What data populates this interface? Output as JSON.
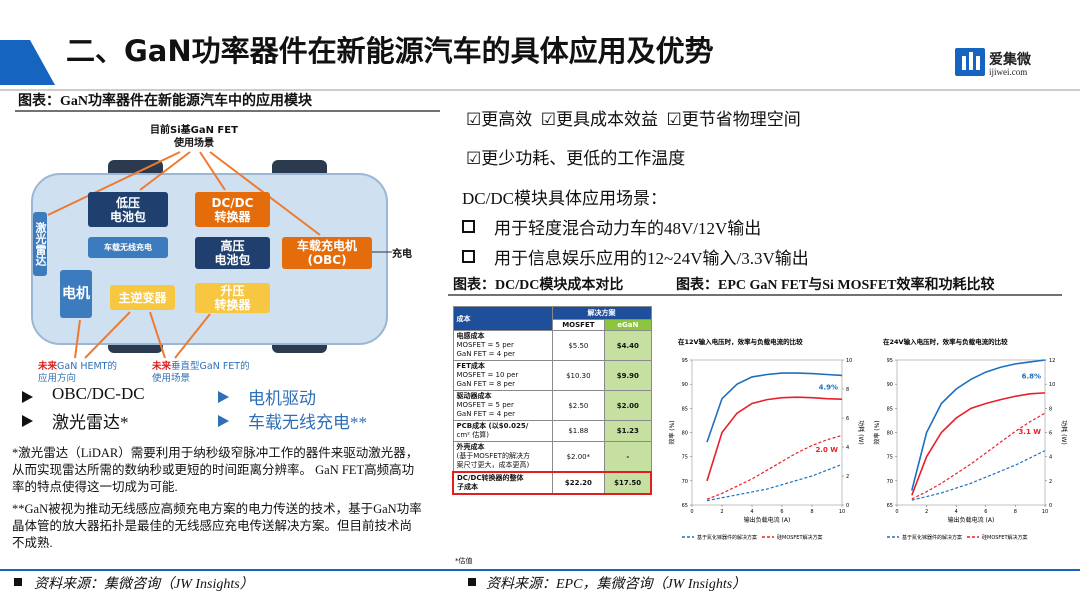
{
  "header": {
    "title": "二、GaN功率器件在新能源汽车的具体应用及优势",
    "logo_name": "爱集微",
    "logo_url": "ijiwei.com"
  },
  "left": {
    "caption": "图表：GaN功率器件在新能源汽车中的应用模块",
    "diagram": {
      "top_label": [
        "目前Si基GaN FET",
        "使用场景"
      ],
      "low_battery": [
        "低压",
        "电池包"
      ],
      "dcdc": [
        "DC/DC",
        "转换器"
      ],
      "lidar": "激光雷达",
      "wireless": "车载无线充电",
      "high_battery": [
        "高压",
        "电池包"
      ],
      "obc": [
        "车载充电机",
        "(OBC)"
      ],
      "charge": "充电",
      "motor": "电机",
      "inverter": "主逆变器",
      "boost": [
        "升压",
        "转换器"
      ],
      "future_hemt": [
        "未来",
        "GaN HEMT的",
        "应用方向"
      ],
      "future_vertical": [
        "未来",
        "垂直型GaN FET的",
        "使用场景"
      ]
    },
    "bullets": [
      "OBC/DC-DC",
      "电机驱动",
      "激光雷达*",
      "车载无线充电**"
    ],
    "notes": [
      "*激光雷达（LiDAR）需要利用于纳秒级窄脉冲工作的器件来驱动激光器，从而实现雷达所需的数纳秒或更短的时间距离分辨率。 GaN FET高频高功率的特点使得这一切成为可能.",
      "**GaN被视为推动无线感应高频充电方案的电力传送的技术，基于GaN功率晶体管的放大器拓扑是最佳的无线感应充电传送解决方案。但目前技术尚不成熟."
    ],
    "source": "资料来源：集微咨询（JW Insights）"
  },
  "right": {
    "checks": [
      [
        "☑更高效",
        "☑更具成本效益",
        "☑更节省物理空间"
      ],
      [
        "☑更少功耗、更低的工作温度"
      ]
    ],
    "dcdc_title": "DC/DC模块具体应用场景：",
    "dcdc_items": [
      "用于轻度混合动力车的48V/12V输出",
      "用于信息娱乐应用的12~24V输入/3.3V输出"
    ],
    "captions": [
      "图表：DC/DC模块成本对比",
      "图表：EPC GaN FET与Si MOSFET效率和功耗比较"
    ],
    "table": {
      "header": [
        "成本",
        "解决方案",
        "MOSFET",
        "eGaN"
      ],
      "rows": [
        [
          [
            "电感成本",
            "MOSFET = 5 per",
            "GaN FET = 4 per"
          ],
          "$5.50",
          "$4.40"
        ],
        [
          [
            "FET成本",
            "MOSFET = 10 per",
            "GaN FET = 8 per"
          ],
          "$10.30",
          "$9.90"
        ],
        [
          [
            "驱动器成本",
            "MOSFET = 5 per",
            "GaN FET = 4 per"
          ],
          "$2.50",
          "$2.00"
        ],
        [
          [
            "PCB成本 (以$0.025/",
            "cm² 估算)"
          ],
          "$1.88",
          "$1.23"
        ],
        [
          [
            "外壳成本",
            "(基于MOSFET的解决方",
            "案尺寸更大，成本更高)"
          ],
          "$2.00*",
          "-"
        ],
        [
          [
            "DC/DC转换器的整体",
            "子成本"
          ],
          "$22.20",
          "$17.50"
        ]
      ],
      "footnote": "*估值"
    },
    "source": "资料来源：EPC，集微咨询（JW Insights）"
  },
  "chart_data": [
    {
      "type": "line",
      "title": "在12V输入电压时，效率与负载电流的比较",
      "xlabel": "输出负载电流 (A)",
      "ylabel": "效率 (%)",
      "y2label": "功耗 (W)",
      "x": [
        1,
        2,
        3,
        4,
        5,
        6,
        7,
        8,
        9,
        10
      ],
      "series": [
        {
          "color": "#1f6fc0",
          "values": [
            78,
            87,
            90,
            91.5,
            92,
            92.3,
            92.3,
            92.2,
            92,
            91.8
          ]
        },
        {
          "color": "#e8202a",
          "values": [
            70,
            80,
            84,
            86,
            86.8,
            87.2,
            87.3,
            87.2,
            87,
            86.9
          ]
        },
        {
          "color": "#1f6fc0",
          "dash": true,
          "axis": "y2",
          "values": [
            0.3,
            0.5,
            0.7,
            0.9,
            1.1,
            1.4,
            1.7,
            2.0,
            2.4,
            2.8
          ]
        },
        {
          "color": "#e8202a",
          "dash": true,
          "axis": "y2",
          "values": [
            0.4,
            0.8,
            1.3,
            1.8,
            2.4,
            3.0,
            3.6,
            4.1,
            4.5,
            4.8
          ]
        }
      ],
      "annotations": [
        "4.9%",
        "2.0 W"
      ],
      "legend": [
        "基于氮化镓器件的解决方案",
        "硅MOSFET解决方案"
      ],
      "xlim": [
        0,
        10
      ],
      "xticks": [
        0,
        2,
        4,
        6,
        8,
        10
      ],
      "ylim": [
        65,
        95
      ],
      "yticks": [
        65,
        70,
        75,
        80,
        85,
        90,
        95
      ],
      "y2lim": [
        0,
        10
      ],
      "y2ticks": [
        0,
        2,
        4,
        6,
        8,
        10
      ]
    },
    {
      "type": "line",
      "title": "在24V输入电压时，效率与负载电流的比较",
      "xlabel": "输出负载电流 (A)",
      "ylabel": "效率 (%)",
      "y2label": "功耗 (W)",
      "x": [
        1,
        2,
        3,
        4,
        5,
        6,
        7,
        8,
        9,
        10
      ],
      "series": [
        {
          "color": "#1f6fc0",
          "values": [
            68,
            80,
            86,
            89,
            91,
            92.5,
            93.5,
            94.2,
            94.6,
            95
          ]
        },
        {
          "color": "#e8202a",
          "values": [
            67,
            75,
            80,
            83,
            85,
            86,
            86.8,
            87.5,
            88,
            88.2
          ]
        },
        {
          "color": "#1f6fc0",
          "dash": true,
          "axis": "y2",
          "values": [
            0.4,
            0.7,
            1.0,
            1.4,
            1.8,
            2.3,
            2.8,
            3.3,
            3.9,
            4.5
          ]
        },
        {
          "color": "#e8202a",
          "dash": true,
          "axis": "y2",
          "values": [
            0.5,
            1.1,
            1.8,
            2.6,
            3.4,
            4.3,
            5.2,
            6.1,
            6.9,
            7.6
          ]
        }
      ],
      "annotations": [
        "6.8%",
        "3.1 W"
      ],
      "legend": [
        "基于氮化镓器件的解决方案",
        "硅MOSFET解决方案"
      ],
      "xlim": [
        0,
        10
      ],
      "xticks": [
        0,
        2,
        4,
        6,
        8,
        10
      ],
      "ylim": [
        65,
        95
      ],
      "yticks": [
        65,
        70,
        75,
        80,
        85,
        90,
        95
      ],
      "y2lim": [
        0,
        12
      ],
      "y2ticks": [
        0,
        2,
        4,
        6,
        8,
        10,
        12
      ]
    }
  ]
}
